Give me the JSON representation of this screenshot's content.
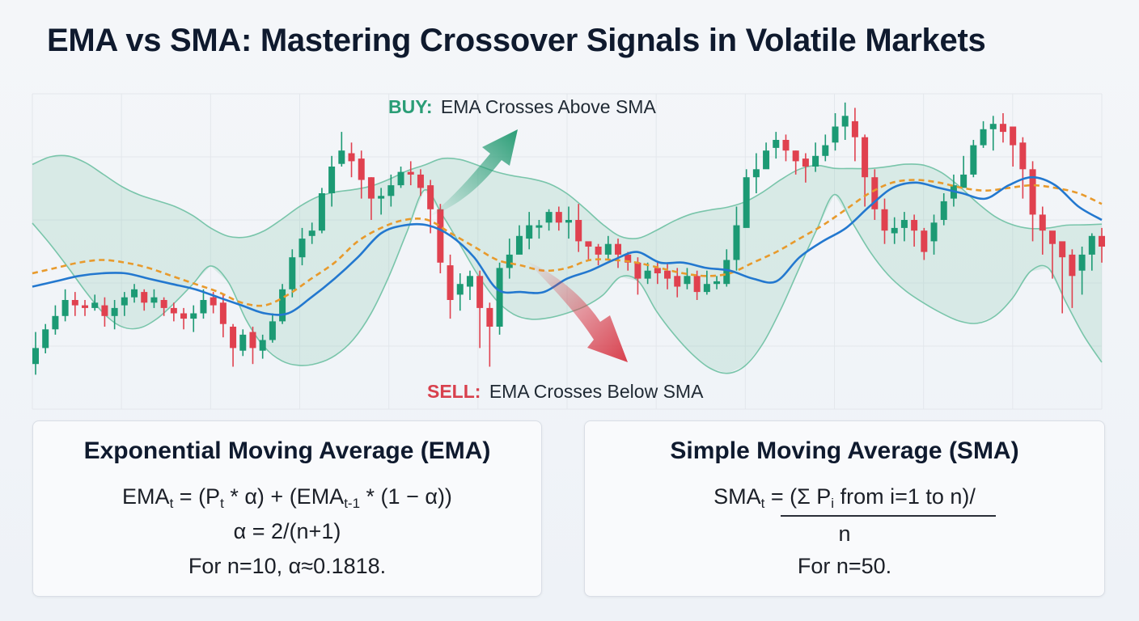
{
  "title": "EMA vs SMA: Mastering Crossover Signals in Volatile Markets",
  "colors": {
    "up": "#1c9a74",
    "down": "#e0414f",
    "ema": "#2378cf",
    "sma": "#e89a2c",
    "band": "#79c5aa",
    "buy": "#2a9d76",
    "sell": "#d8404d",
    "grid": "#e3e7ec"
  },
  "chart_data": {
    "type": "candlestick",
    "title": "EMA vs SMA: Mastering Crossover Signals in Volatile Markets",
    "xlabel": "",
    "ylabel": "",
    "ylim": [
      0,
      100
    ],
    "grid": true,
    "candles": [
      [
        12,
        6,
        18,
        2
      ],
      [
        19,
        12,
        21,
        10
      ],
      [
        24,
        19,
        28,
        17
      ],
      [
        30,
        24,
        34,
        22
      ],
      [
        28,
        30,
        33,
        24
      ],
      [
        27,
        28,
        30,
        24
      ],
      [
        29,
        27,
        32,
        26
      ],
      [
        24,
        28,
        31,
        20
      ],
      [
        27,
        24,
        30,
        19
      ],
      [
        31,
        28,
        33,
        24
      ],
      [
        34,
        31,
        36,
        29
      ],
      [
        29,
        33,
        34,
        26
      ],
      [
        31,
        29,
        34,
        27
      ],
      [
        27,
        30,
        31,
        24
      ],
      [
        25,
        27,
        29,
        22
      ],
      [
        23,
        25,
        27,
        19
      ],
      [
        25,
        23,
        28,
        18
      ],
      [
        30,
        25,
        34,
        23
      ],
      [
        28,
        31,
        33,
        25
      ],
      [
        21,
        29,
        32,
        16
      ],
      [
        12,
        20,
        21,
        5
      ],
      [
        17,
        11,
        19,
        9
      ],
      [
        12,
        18,
        20,
        6
      ],
      [
        15,
        11,
        17,
        8
      ],
      [
        22,
        15,
        25,
        14
      ],
      [
        34,
        22,
        36,
        21
      ],
      [
        46,
        34,
        49,
        31
      ],
      [
        53,
        46,
        57,
        43
      ],
      [
        56,
        54,
        59,
        51
      ],
      [
        70,
        56,
        72,
        55
      ],
      [
        80,
        70,
        84,
        65
      ],
      [
        86,
        81,
        93,
        80
      ],
      [
        82,
        85,
        89,
        76
      ],
      [
        75,
        83,
        86,
        68
      ],
      [
        68,
        76,
        76,
        60
      ],
      [
        69,
        68,
        72,
        62
      ],
      [
        73,
        69,
        77,
        65
      ],
      [
        78,
        73,
        80,
        72
      ],
      [
        77,
        78,
        82,
        73
      ],
      [
        72,
        77,
        79,
        69
      ],
      [
        64,
        73,
        75,
        55
      ],
      [
        44,
        64,
        66,
        40
      ],
      [
        30,
        43,
        47,
        23
      ],
      [
        36,
        32,
        40,
        26
      ],
      [
        39,
        35,
        41,
        30
      ],
      [
        27,
        39,
        41,
        12
      ],
      [
        20,
        27,
        29,
        5
      ],
      [
        42,
        20,
        44,
        17
      ],
      [
        47,
        42,
        53,
        38
      ],
      [
        54,
        47,
        58,
        50
      ],
      [
        58,
        53,
        63,
        49
      ],
      [
        58,
        58,
        60,
        53
      ],
      [
        63,
        59,
        64,
        56
      ],
      [
        59,
        63,
        65,
        56
      ],
      [
        60,
        59,
        65,
        53
      ],
      [
        52,
        60,
        66,
        48
      ],
      [
        50,
        52,
        51,
        45
      ],
      [
        47,
        50,
        51,
        43
      ],
      [
        51,
        47,
        54,
        45
      ],
      [
        47,
        51,
        53,
        42
      ],
      [
        44,
        47,
        48,
        41
      ],
      [
        38,
        44,
        46,
        32
      ],
      [
        41,
        38,
        44,
        36
      ],
      [
        40,
        42,
        44,
        36
      ],
      [
        38,
        41,
        44,
        34
      ],
      [
        35,
        39,
        42,
        31
      ],
      [
        39,
        36,
        42,
        34
      ],
      [
        33,
        39,
        41,
        30
      ],
      [
        36,
        33,
        41,
        32
      ],
      [
        37,
        36,
        39,
        34
      ],
      [
        45,
        36,
        49,
        35
      ],
      [
        58,
        45,
        65,
        41
      ],
      [
        76,
        57,
        79,
        74
      ],
      [
        79,
        76,
        85,
        70
      ],
      [
        86,
        79,
        89,
        83
      ],
      [
        90,
        87,
        93,
        83
      ],
      [
        86,
        90,
        92,
        82
      ],
      [
        82,
        86,
        86,
        77
      ],
      [
        80,
        83,
        85,
        74
      ],
      [
        84,
        80,
        89,
        78
      ],
      [
        88,
        84,
        92,
        82
      ],
      [
        95,
        89,
        100,
        86
      ],
      [
        99,
        95,
        104,
        90
      ],
      [
        91,
        97,
        102,
        82
      ],
      [
        76,
        91,
        92,
        65
      ],
      [
        64,
        76,
        79,
        60
      ],
      [
        56,
        64,
        68,
        51
      ],
      [
        57,
        55,
        61,
        51
      ],
      [
        60,
        57,
        63,
        52
      ],
      [
        56,
        60,
        62,
        50
      ],
      [
        48,
        56,
        57,
        45
      ],
      [
        59,
        52,
        62,
        47
      ],
      [
        67,
        60,
        70,
        58
      ],
      [
        73,
        68,
        77,
        65
      ],
      [
        77,
        72,
        84,
        73
      ],
      [
        88,
        77,
        90,
        76
      ],
      [
        94,
        88,
        97,
        87
      ],
      [
        96,
        94,
        99,
        86
      ],
      [
        93,
        96,
        100,
        89
      ],
      [
        88,
        95,
        95,
        80
      ],
      [
        79,
        89,
        91,
        68
      ],
      [
        62,
        79,
        82,
        52
      ],
      [
        56,
        62,
        65,
        47
      ],
      [
        51,
        56,
        55,
        38
      ],
      [
        46,
        52,
        50,
        25
      ],
      [
        39,
        47,
        49,
        27
      ],
      [
        47,
        41,
        50,
        32
      ],
      [
        54,
        47,
        55,
        41
      ],
      [
        50,
        54,
        57,
        44
      ]
    ],
    "ema_line": [
      35,
      37,
      39,
      40,
      40,
      38,
      36,
      34,
      31,
      28,
      25,
      25,
      31,
      38,
      46,
      55,
      58,
      58,
      54,
      46,
      34,
      33,
      33,
      38,
      41,
      45,
      48,
      44,
      44,
      42,
      41,
      38,
      37,
      46,
      52,
      57,
      65,
      72,
      74,
      72,
      70,
      68,
      73,
      76,
      73,
      65,
      60
    ],
    "sma_line": [
      40,
      42,
      44,
      45,
      44,
      42,
      39,
      36,
      33,
      29,
      28,
      32,
      38,
      44,
      52,
      57,
      60,
      60,
      55,
      50,
      45,
      43,
      41,
      42,
      45,
      45,
      44,
      42,
      40,
      39,
      40,
      44,
      48,
      53,
      58,
      64,
      70,
      74,
      75,
      74,
      72,
      71,
      72,
      73,
      72,
      70,
      66
    ],
    "signals": [
      {
        "label_prefix": "BUY:",
        "label_text": "EMA Crosses Above SMA",
        "type": "buy"
      },
      {
        "label_prefix": "SELL:",
        "label_text": "EMA Crosses Below SMA",
        "type": "sell"
      }
    ]
  },
  "ema_card": {
    "heading": "Exponential Moving Average (EMA)",
    "line1": {
      "a": "EMA",
      "a_sub": "t",
      "b": " = (P",
      "b_sub": "t",
      "c": " * α) + (EMA",
      "c_sub": "t-1",
      "d": " * (1 − α))"
    },
    "line2": "α = 2/(n+1)",
    "line3": "For n=10, α≈0.1818."
  },
  "sma_card": {
    "heading": "Simple Moving Average (SMA)",
    "line1": {
      "a": "SMA",
      "a_sub": "t",
      "b": " = (Σ P",
      "b_sub": "i",
      "c": " from i=1 to n)/"
    },
    "line2": "n",
    "line3": "For n=50."
  }
}
